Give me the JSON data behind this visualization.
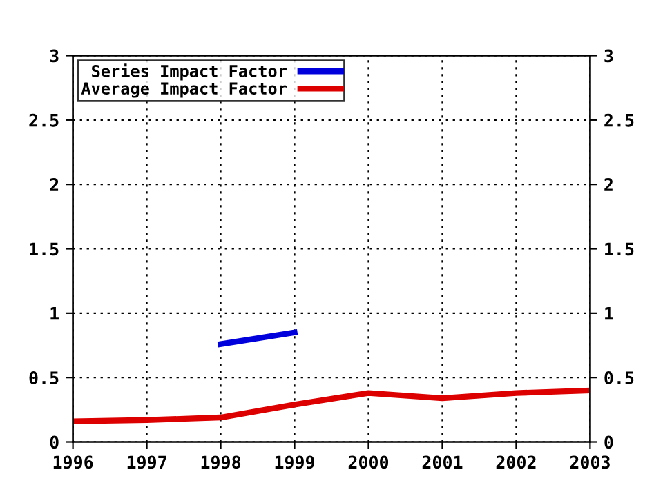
{
  "chart_data": {
    "type": "line",
    "x": [
      1996,
      1997,
      1998,
      1999,
      2000,
      2001,
      2002,
      2003
    ],
    "series": [
      {
        "name": "Series Impact Factor",
        "color": "#0000dd",
        "values": [
          null,
          null,
          0.76,
          0.85,
          null,
          null,
          null,
          null
        ]
      },
      {
        "name": "Average Impact Factor",
        "color": "#dd0000",
        "values": [
          0.16,
          0.17,
          0.19,
          0.29,
          0.38,
          0.34,
          0.38,
          0.4
        ]
      }
    ],
    "xlim": [
      1996,
      2003
    ],
    "xticks": [
      1996,
      1997,
      1998,
      1999,
      2000,
      2001,
      2002,
      2003
    ],
    "ylim": [
      0,
      3
    ],
    "yticks": [
      0,
      0.5,
      1,
      1.5,
      2,
      2.5,
      3
    ],
    "y2lim": [
      0,
      3
    ],
    "y2ticks": [
      0,
      0.5,
      1,
      1.5,
      2,
      2.5,
      3
    ],
    "grid": true,
    "legend": "top left",
    "line_style": "solid",
    "marker": "none"
  }
}
